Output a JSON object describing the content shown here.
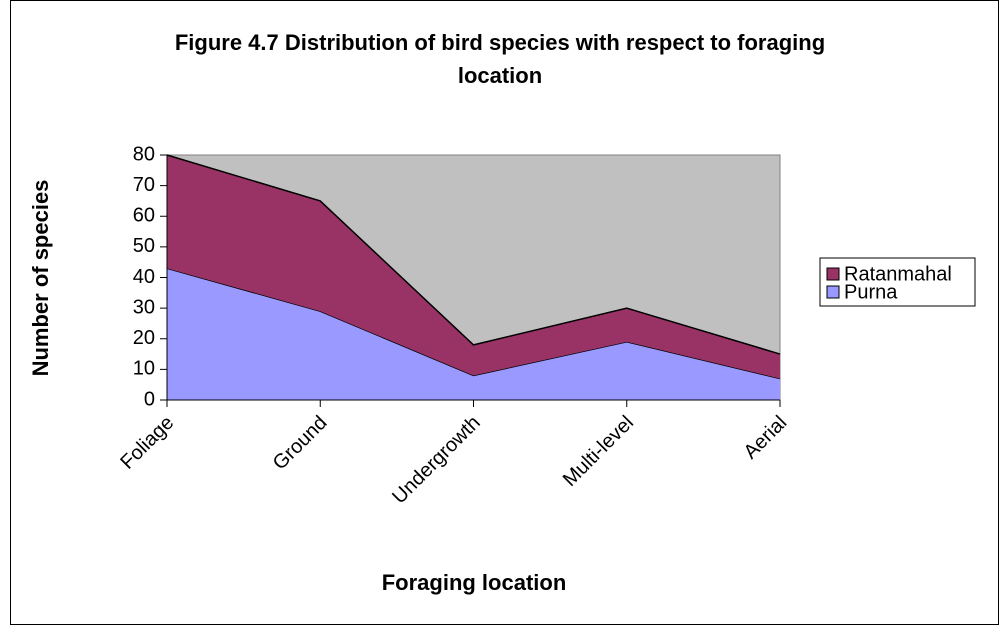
{
  "chart_data": {
    "type": "stacked_area",
    "title": "Figure 4.7 Distribution of bird species with respect to foraging location",
    "x_label": "Foraging location",
    "y_label": "Number of species",
    "categories": [
      "Foliage",
      "Ground",
      "Undergrowth",
      "Multi-level",
      "Aerial"
    ],
    "series": [
      {
        "name": "Purna",
        "color": "#9999ff",
        "values": [
          43,
          29,
          8,
          19,
          7
        ]
      },
      {
        "name": "Ratanmahal",
        "color": "#993366",
        "values": [
          37,
          36,
          10,
          11,
          8
        ]
      }
    ],
    "ylim": [
      0,
      80
    ],
    "yticks": [
      0,
      10,
      20,
      30,
      40,
      50,
      60,
      70,
      80
    ],
    "grid": false,
    "legend": "right",
    "plot_background": "#c0c0c0"
  }
}
